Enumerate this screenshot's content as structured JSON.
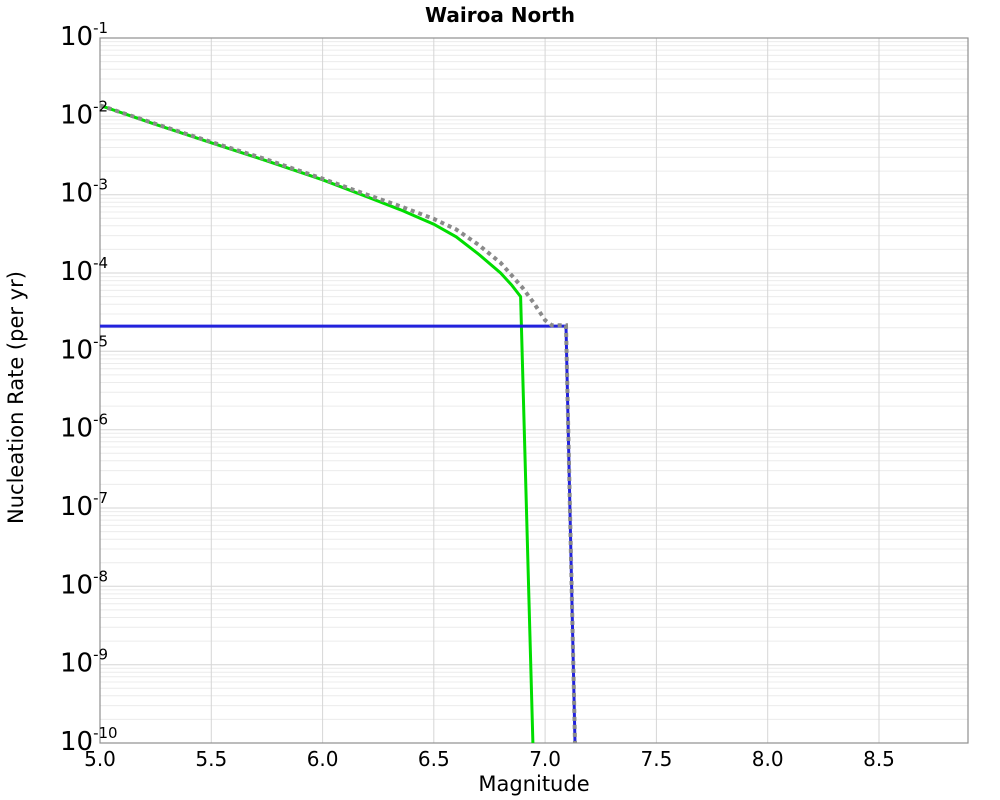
{
  "chart_data": {
    "type": "line",
    "title": "Wairoa North",
    "xlabel": "Magnitude",
    "ylabel": "Nucleation Rate (per yr)",
    "legend": "none",
    "x_axis": {
      "min": 5.0,
      "max": 8.9,
      "ticks": [
        5.0,
        5.5,
        6.0,
        6.5,
        7.0,
        7.5,
        8.0,
        8.5
      ]
    },
    "y_axis": {
      "scale": "log",
      "min_exp": -10,
      "max_exp": -1,
      "tick_exponents": [
        -1,
        -2,
        -3,
        -4,
        -5,
        -6,
        -7,
        -8,
        -9,
        -10
      ],
      "minor_gridlines": true
    },
    "grid": {
      "vertical_major": true,
      "horizontal_major": true,
      "horizontal_minor": true
    },
    "colors": {
      "background": "#ffffff",
      "frame": "#8f8f8f",
      "grid_major": "#d6d6d6",
      "grid_minor": "#ececec",
      "green_series": "#00dd00",
      "blue_series": "#2222dd",
      "gray_series": "#8a8a8a"
    },
    "series": [
      {
        "name": "green-solid-curve",
        "style": "solid",
        "width": 3,
        "color_key": "green_series",
        "points": [
          [
            5.0,
            0.0138
          ],
          [
            5.25,
            0.0079
          ],
          [
            5.5,
            0.0046
          ],
          [
            5.75,
            0.0027
          ],
          [
            6.0,
            0.00155
          ],
          [
            6.2,
            0.00094
          ],
          [
            6.35,
            0.00064
          ],
          [
            6.5,
            0.00042
          ],
          [
            6.6,
            0.00029
          ],
          [
            6.7,
            0.000175
          ],
          [
            6.8,
            0.0001
          ],
          [
            6.85,
            7e-05
          ],
          [
            6.89,
            5e-05
          ],
          [
            6.945,
            1e-10
          ]
        ]
      },
      {
        "name": "blue-solid-curve",
        "style": "solid",
        "width": 3,
        "color_key": "blue_series",
        "points": [
          [
            5.0,
            2.1e-05
          ],
          [
            7.094,
            2.1e-05
          ],
          [
            7.134,
            1e-10
          ]
        ]
      },
      {
        "name": "gray-dotted-curve",
        "style": "dotted",
        "width": 4,
        "color_key": "gray_series",
        "points": [
          [
            5.0,
            0.0138
          ],
          [
            5.25,
            0.008
          ],
          [
            5.5,
            0.0047
          ],
          [
            5.75,
            0.0028
          ],
          [
            6.0,
            0.0016
          ],
          [
            6.2,
            0.001
          ],
          [
            6.35,
            0.00071
          ],
          [
            6.5,
            0.00049
          ],
          [
            6.6,
            0.00036
          ],
          [
            6.7,
            0.00023
          ],
          [
            6.8,
            0.000135
          ],
          [
            6.9,
            6.4e-05
          ],
          [
            6.95,
            4.1e-05
          ],
          [
            7.0,
            2.5e-05
          ],
          [
            7.03,
            2.15e-05
          ],
          [
            7.094,
            2.15e-05
          ],
          [
            7.134,
            1e-10
          ]
        ]
      }
    ]
  }
}
